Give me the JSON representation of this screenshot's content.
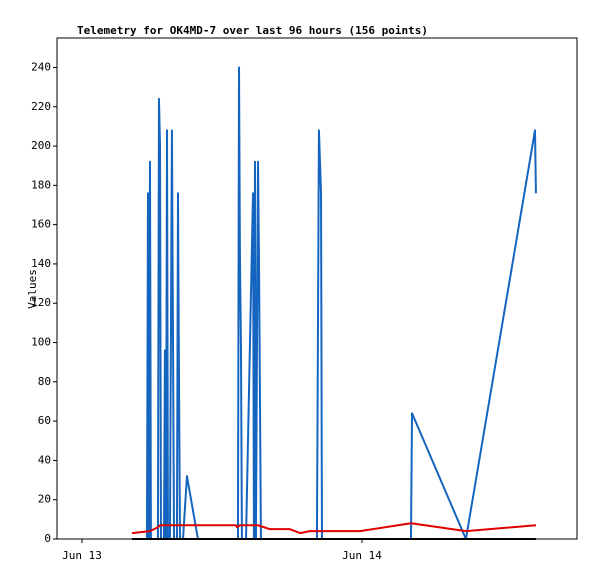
{
  "chart_data": {
    "type": "line",
    "title": "Telemetry for OK4MD-7 over last 96 hours (156 points)",
    "y_label": "Values",
    "xlim": [
      -2.14,
      42.43
    ],
    "xticks": [
      {
        "value": 0,
        "label": "Jun 13"
      },
      {
        "value": 24,
        "label": "Jun 14"
      }
    ],
    "ylim": [
      0,
      255
    ],
    "yticks": [
      0,
      20,
      40,
      60,
      80,
      100,
      120,
      140,
      160,
      180,
      200,
      220,
      240
    ],
    "grid": false,
    "series": [
      {
        "color": "#1565c0",
        "x": [
          5.57,
          5.66,
          5.74,
          5.83,
          5.91,
          6.51,
          6.6,
          6.69,
          6.77,
          7.03,
          7.11,
          7.2,
          7.29,
          7.37,
          7.54,
          7.71,
          7.8,
          7.89,
          8.14,
          8.23,
          8.31,
          8.4,
          8.66,
          9.0,
          9.94,
          13.37,
          13.46,
          13.54,
          13.63,
          13.71,
          14.06,
          14.66,
          14.74,
          14.83,
          14.91,
          15.09,
          15.17,
          15.34,
          20.14,
          20.31,
          20.49,
          20.57,
          21.34,
          28.2,
          28.29,
          32.91,
          38.83,
          38.91
        ],
        "values": [
          0,
          176,
          0,
          192,
          0,
          0,
          224,
          200,
          0,
          0,
          96,
          0,
          208,
          0,
          0,
          208,
          104,
          0,
          0,
          176,
          88,
          0,
          0,
          32,
          0,
          0,
          240,
          144,
          96,
          0,
          0,
          176,
          0,
          192,
          0,
          192,
          144,
          0,
          0,
          208,
          176,
          0,
          0,
          0,
          64,
          0,
          208,
          176
        ]
      },
      {
        "color": "#e00000",
        "x": [
          4.29,
          5.83,
          6.51,
          6.69,
          9.26,
          13.2,
          13.29,
          13.54,
          15.09,
          16.11,
          17.83,
          18.69,
          19.54,
          21.26,
          23.83,
          28.2,
          32.91,
          38.91
        ],
        "values": [
          3,
          4,
          6,
          7,
          7,
          7,
          6,
          7,
          7,
          5,
          5,
          3,
          4,
          4,
          4,
          8,
          4,
          7
        ]
      },
      {
        "color": "#000000",
        "x": [
          4.29,
          38.91
        ],
        "values": [
          0,
          0
        ]
      }
    ]
  }
}
